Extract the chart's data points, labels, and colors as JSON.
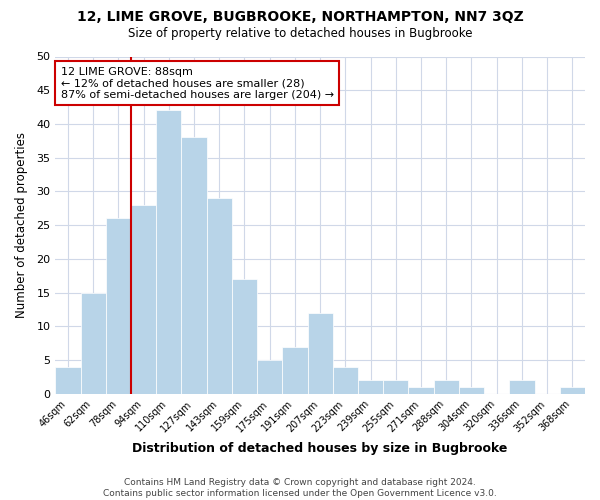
{
  "title": "12, LIME GROVE, BUGBROOKE, NORTHAMPTON, NN7 3QZ",
  "subtitle": "Size of property relative to detached houses in Bugbrooke",
  "xlabel": "Distribution of detached houses by size in Bugbrooke",
  "ylabel": "Number of detached properties",
  "footer1": "Contains HM Land Registry data © Crown copyright and database right 2024.",
  "footer2": "Contains public sector information licensed under the Open Government Licence v3.0.",
  "bin_labels": [
    "46sqm",
    "62sqm",
    "78sqm",
    "94sqm",
    "110sqm",
    "127sqm",
    "143sqm",
    "159sqm",
    "175sqm",
    "191sqm",
    "207sqm",
    "223sqm",
    "239sqm",
    "255sqm",
    "271sqm",
    "288sqm",
    "304sqm",
    "320sqm",
    "336sqm",
    "352sqm",
    "368sqm"
  ],
  "bar_values": [
    4,
    15,
    26,
    28,
    42,
    38,
    29,
    17,
    5,
    7,
    12,
    4,
    2,
    2,
    1,
    2,
    1,
    0,
    2,
    0,
    1
  ],
  "bar_color": "#b8d4e8",
  "bar_edge_color": "#ffffff",
  "ylim": [
    0,
    50
  ],
  "yticks": [
    0,
    5,
    10,
    15,
    20,
    25,
    30,
    35,
    40,
    45,
    50
  ],
  "vline_x": 2.5,
  "vline_color": "#cc0000",
  "annotation_title": "12 LIME GROVE: 88sqm",
  "annotation_line1": "← 12% of detached houses are smaller (28)",
  "annotation_line2": "87% of semi-detached houses are larger (204) →",
  "annotation_box_color": "#ffffff",
  "annotation_box_edge": "#cc0000",
  "background_color": "#ffffff",
  "grid_color": "#d0d8e8"
}
